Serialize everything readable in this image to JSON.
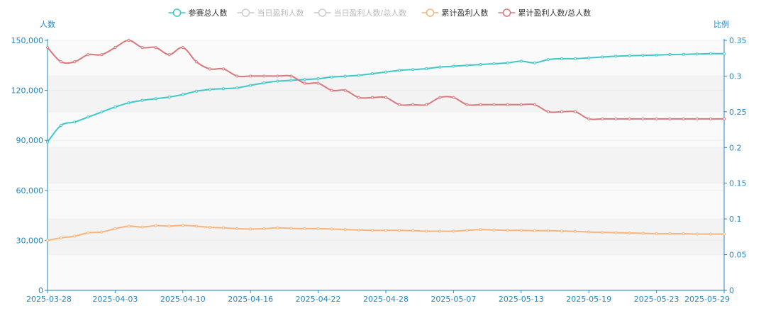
{
  "chart_data": {
    "type": "line",
    "title": "",
    "y_left_label": "人数",
    "y_right_label": "比例",
    "y_left_ticks": [
      "0",
      "30,000",
      "60,000",
      "90,000",
      "120,000",
      "150,000"
    ],
    "y_right_ticks": [
      "0",
      "0.05",
      "0.1",
      "0.15",
      "0.2",
      "0.25",
      "0.3",
      "0.35"
    ],
    "y_left_range": [
      0,
      150000
    ],
    "y_right_range": [
      0,
      0.35
    ],
    "x_tick_labels": [
      "2025-03-28",
      "2025-04-03",
      "2025-04-10",
      "2025-04-16",
      "2025-04-22",
      "2025-04-28",
      "2025-05-07",
      "2025-05-13",
      "2025-05-19",
      "2025-05-23",
      "2025-05-29"
    ],
    "x_tick_index": [
      0,
      5,
      10,
      15,
      20,
      25,
      30,
      35,
      40,
      45,
      50
    ],
    "grid": true,
    "legend_position": "top-center",
    "legend": [
      {
        "name": "参赛总人数",
        "color": "#3cc8c8",
        "active": true
      },
      {
        "name": "当日盈利人数",
        "color": "#c8c8c8",
        "active": false
      },
      {
        "name": "当日盈利人数/总人数",
        "color": "#c8c8c8",
        "active": false
      },
      {
        "name": "累计盈利人数",
        "color": "#f8b47c",
        "active": true
      },
      {
        "name": "累计盈利人数/总人数",
        "color": "#d8787c",
        "active": true
      }
    ],
    "series": [
      {
        "name": "参赛总人数",
        "axis": "left",
        "color": "#3cc8c8",
        "values": [
          89000,
          99000,
          101000,
          104000,
          107000,
          110000,
          112500,
          114000,
          115000,
          116000,
          117500,
          119500,
          120500,
          121000,
          121500,
          123000,
          124500,
          125500,
          126000,
          126500,
          127000,
          128000,
          128500,
          129000,
          130000,
          131000,
          132000,
          132500,
          133000,
          134000,
          134500,
          135000,
          135500,
          136000,
          136500,
          137500,
          136500,
          138500,
          139000,
          139000,
          139500,
          140000,
          140500,
          140800,
          141000,
          141200,
          141500,
          141600,
          141800,
          142000,
          142000
        ]
      },
      {
        "name": "累计盈利人数",
        "axis": "left",
        "color": "#f8b47c",
        "values": [
          30000,
          31500,
          32500,
          34500,
          35000,
          37000,
          38500,
          38000,
          38800,
          38500,
          39000,
          38500,
          37800,
          37500,
          37000,
          36800,
          37000,
          37500,
          37200,
          37000,
          37000,
          36800,
          36500,
          36200,
          36000,
          36000,
          36000,
          35800,
          35500,
          35500,
          35500,
          36000,
          36500,
          36200,
          36000,
          36000,
          35800,
          35800,
          35600,
          35400,
          35000,
          34800,
          34600,
          34400,
          34200,
          34000,
          34000,
          34000,
          33800,
          33800,
          33800
        ]
      },
      {
        "name": "累计盈利人数/总人数",
        "axis": "right",
        "color": "#d8787c",
        "values": [
          0.34,
          0.32,
          0.32,
          0.33,
          0.33,
          0.34,
          0.35,
          0.34,
          0.34,
          0.33,
          0.34,
          0.32,
          0.31,
          0.31,
          0.3,
          0.3,
          0.3,
          0.3,
          0.3,
          0.29,
          0.29,
          0.28,
          0.28,
          0.27,
          0.27,
          0.27,
          0.26,
          0.26,
          0.26,
          0.27,
          0.27,
          0.26,
          0.26,
          0.26,
          0.26,
          0.26,
          0.26,
          0.25,
          0.25,
          0.25,
          0.24,
          0.24,
          0.24,
          0.24,
          0.24,
          0.24,
          0.24,
          0.24,
          0.24,
          0.24,
          0.24
        ]
      }
    ]
  }
}
